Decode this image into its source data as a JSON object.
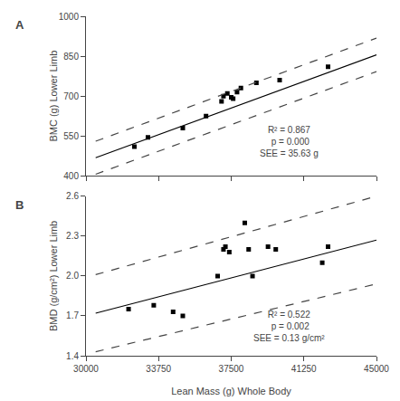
{
  "chart_data": [
    {
      "type": "scatter",
      "title": "A",
      "ylabel": "BMC (g) Lower Limb",
      "xlim": [
        30000,
        45000
      ],
      "xticks": [
        30000,
        33750,
        37500,
        41250,
        45000
      ],
      "ylim": [
        400,
        1000
      ],
      "yticks": [
        400,
        550,
        700,
        850,
        1000
      ],
      "grid": false,
      "tick_labels": "y",
      "series": [
        {
          "type": "scatter",
          "marker": "square",
          "color": "#000000",
          "x": [
            32500,
            33200,
            35000,
            36200,
            37000,
            37100,
            37300,
            37500,
            37600,
            37800,
            38000,
            38800,
            40000,
            42500
          ],
          "values": [
            510,
            545,
            580,
            625,
            680,
            700,
            710,
            695,
            690,
            715,
            730,
            750,
            760,
            810
          ]
        },
        {
          "type": "line",
          "line_style": "solid",
          "color": "#000000",
          "x": [
            30500,
            45000
          ],
          "values": [
            468,
            855
          ]
        },
        {
          "type": "line",
          "line_style": "dashed",
          "color": "#444444",
          "x": [
            30500,
            45000
          ],
          "values": [
            530,
            918
          ]
        },
        {
          "type": "line",
          "line_style": "dashed",
          "color": "#444444",
          "x": [
            30500,
            45000
          ],
          "values": [
            406,
            792
          ]
        }
      ],
      "annotations": [
        {
          "text": "R² = 0.867\n p = 0.000\nSEE = 35.63 g",
          "x": 40500,
          "y": 460
        }
      ]
    },
    {
      "type": "scatter",
      "title": "B",
      "xlabel": "Lean Mass (g) Whole Body",
      "ylabel": "BMD (g/cm²) Lower Limb",
      "xlim": [
        30000,
        45000
      ],
      "xticks": [
        30000,
        33750,
        37500,
        41250,
        45000
      ],
      "ylim": [
        1.4,
        2.6
      ],
      "yticks": [
        1.4,
        1.7,
        {
          "value": 2.0,
          "label": "2.0"
        },
        2.3,
        2.6
      ],
      "grid": false,
      "series": [
        {
          "type": "scatter",
          "marker": "square",
          "color": "#000000",
          "x": [
            32200,
            33500,
            34500,
            35000,
            36800,
            37100,
            37200,
            37400,
            38200,
            38400,
            38600,
            39400,
            39800,
            42200,
            42500
          ],
          "values": [
            1.75,
            1.78,
            1.73,
            1.7,
            2.0,
            2.2,
            2.22,
            2.18,
            2.4,
            2.2,
            2.0,
            2.22,
            2.2,
            2.1,
            2.22
          ]
        },
        {
          "type": "line",
          "line_style": "solid",
          "color": "#000000",
          "x": [
            30500,
            45000
          ],
          "values": [
            1.72,
            2.27
          ]
        },
        {
          "type": "line",
          "line_style": "dashed",
          "color": "#444444",
          "x": [
            30500,
            45000
          ],
          "values": [
            2.01,
            2.6
          ]
        },
        {
          "type": "line",
          "line_style": "dashed",
          "color": "#444444",
          "x": [
            30500,
            45000
          ],
          "values": [
            1.43,
            1.94
          ]
        }
      ],
      "annotations": [
        {
          "text": "R² = 0.522\n p = 0.002\nSEE = 0.13 g/cm²",
          "x": 40500,
          "y": 1.48
        }
      ]
    }
  ]
}
